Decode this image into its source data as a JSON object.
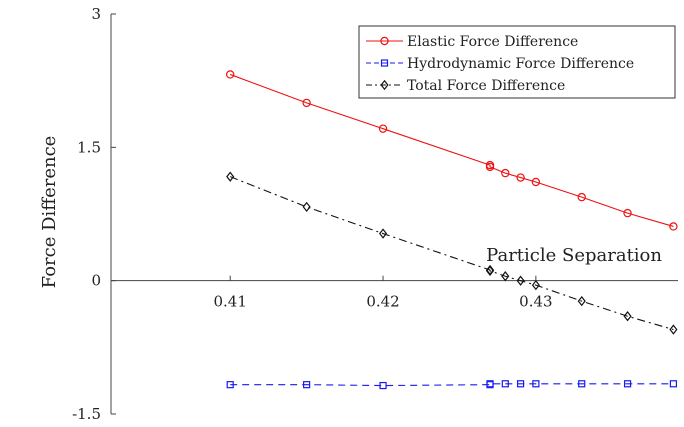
{
  "chart_data": {
    "type": "line",
    "ylabel": "Force Difference",
    "xlabel": "Particle Separation",
    "xlim": [
      0.4022,
      0.4393
    ],
    "ylim": [
      -1.5,
      3
    ],
    "x_ticks": [
      {
        "value": 0.41,
        "label": "0.41"
      },
      {
        "value": 0.42,
        "label": "0.42"
      },
      {
        "value": 0.43,
        "label": "0.43"
      }
    ],
    "y_ticks": [
      {
        "value": 3,
        "label": "3"
      },
      {
        "value": 1.5,
        "label": "1.5"
      },
      {
        "value": 0,
        "label": "0"
      },
      {
        "value": -1.5,
        "label": "-1.5"
      }
    ],
    "grid": false,
    "legend_position": "top-right",
    "series": [
      {
        "name": "Elastic Force Difference",
        "color": "#ee1111",
        "marker": "circle",
        "dash": "solid",
        "points": [
          [
            0.41,
            2.32
          ],
          [
            0.415,
            2.0
          ],
          [
            0.42,
            1.71
          ],
          [
            0.427,
            1.3
          ],
          [
            0.427,
            1.28
          ],
          [
            0.428,
            1.21
          ],
          [
            0.429,
            1.16
          ],
          [
            0.43,
            1.11
          ],
          [
            0.433,
            0.94
          ],
          [
            0.436,
            0.76
          ],
          [
            0.439,
            0.61
          ]
        ]
      },
      {
        "name": "Hydrodynamic Force Difference",
        "color": "#1a1aee",
        "marker": "square",
        "dash": "dashed",
        "points": [
          [
            0.41,
            -1.17
          ],
          [
            0.415,
            -1.17
          ],
          [
            0.42,
            -1.18
          ],
          [
            0.427,
            -1.17
          ],
          [
            0.427,
            -1.16
          ],
          [
            0.428,
            -1.16
          ],
          [
            0.429,
            -1.16
          ],
          [
            0.43,
            -1.16
          ],
          [
            0.433,
            -1.16
          ],
          [
            0.436,
            -1.16
          ],
          [
            0.439,
            -1.16
          ]
        ]
      },
      {
        "name": "Total Force Difference",
        "color": "#111111",
        "marker": "diamond",
        "dash": "dashdot",
        "points": [
          [
            0.41,
            1.17
          ],
          [
            0.415,
            0.83
          ],
          [
            0.42,
            0.53
          ],
          [
            0.427,
            0.12
          ],
          [
            0.427,
            0.11
          ],
          [
            0.428,
            0.05
          ],
          [
            0.429,
            0.0
          ],
          [
            0.43,
            -0.05
          ],
          [
            0.433,
            -0.23
          ],
          [
            0.436,
            -0.4
          ],
          [
            0.439,
            -0.55
          ]
        ]
      }
    ]
  }
}
